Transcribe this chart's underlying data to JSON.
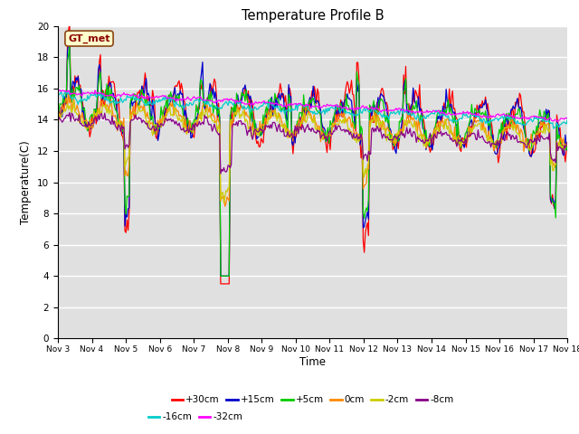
{
  "title": "Temperature Profile B",
  "xlabel": "Time",
  "ylabel": "Temperature(C)",
  "ylim": [
    0,
    20
  ],
  "yticks": [
    0,
    2,
    4,
    6,
    8,
    10,
    12,
    14,
    16,
    18,
    20
  ],
  "xtick_labels": [
    "Nov 3",
    "Nov 4",
    "Nov 5",
    "Nov 6",
    "Nov 7",
    "Nov 8",
    "Nov 9",
    "Nov 10",
    "Nov 11",
    "Nov 12",
    "Nov 13",
    "Nov 14",
    "Nov 15",
    "Nov 16",
    "Nov 17",
    "Nov 18"
  ],
  "series_labels": [
    "+30cm",
    "+15cm",
    "+5cm",
    "0cm",
    "-2cm",
    "-8cm",
    "-16cm",
    "-32cm"
  ],
  "series_colors": [
    "#ff0000",
    "#0000cc",
    "#00cc00",
    "#ff8800",
    "#cccc00",
    "#880088",
    "#00cccc",
    "#ff00ff"
  ],
  "legend_label": "GT_met",
  "plot_bg": "#e0e0e0",
  "figure_bg": "#ffffff",
  "num_points": 480,
  "gt_box_facecolor": "#ffffcc",
  "gt_box_edgecolor": "#8B4513",
  "gt_text_color": "#8B0000"
}
